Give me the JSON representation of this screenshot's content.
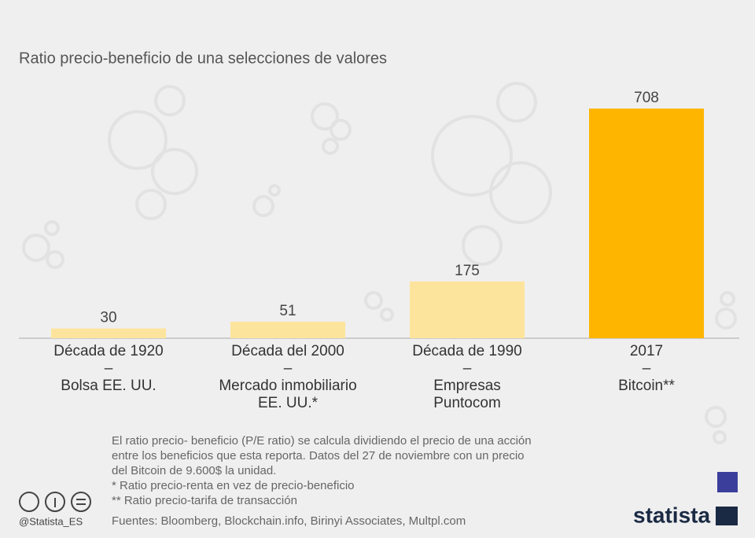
{
  "chart_data": {
    "type": "bar",
    "title": "Ratio precio-beneficio de una selecciones de valores",
    "categories": [
      [
        "Década de 1920",
        "–",
        "Bolsa EE. UU."
      ],
      [
        "Década del 2000",
        "–",
        "Mercado inmobiliario",
        "EE. UU.*"
      ],
      [
        "Década de 1990",
        "–",
        "Empresas",
        "Puntocom"
      ],
      [
        "2017",
        "–",
        "Bitcoin**"
      ]
    ],
    "values": [
      30,
      51,
      175,
      708
    ],
    "colors": [
      "#fde49c",
      "#fde49c",
      "#fde49c",
      "#feb500"
    ],
    "notes": [
      "El ratio precio- beneficio (P/E ratio) se calcula dividiendo el precio de una acción",
      "entre los beneficios que esta reporta. Datos del 27 de noviembre con un precio",
      "del Bitcoin de 9.600$ la unidad.",
      "*   Ratio precio-renta en vez de precio-beneficio",
      "** Ratio precio-tarifa de transacción"
    ],
    "source": "Fuentes: Bloomberg, Blockchain.info, Birinyi Associates, Multpl.com",
    "credit": "@Statista_ES",
    "brand": "statista"
  }
}
